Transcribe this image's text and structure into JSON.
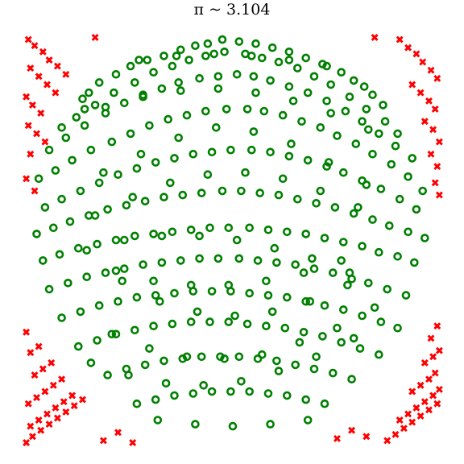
{
  "chart_data": {
    "type": "scatter",
    "title": "π ~  3.104",
    "xlabel": "",
    "ylabel": "",
    "xlim": [
      -1,
      1
    ],
    "ylim": [
      -1,
      1
    ],
    "axes_visible": false,
    "grid": false,
    "series": [
      {
        "key": "inside",
        "marker": "ring",
        "color": "#008000",
        "x": [
          -0.72,
          -0.69,
          -0.71,
          -0.64,
          -0.56,
          -0.49,
          -0.41,
          -0.33,
          -0.25,
          -0.18,
          -0.12,
          -0.05,
          0.03,
          0.11,
          0.19,
          0.27,
          0.35,
          0.43,
          0.52,
          0.58,
          0.63,
          0.67,
          0.72,
          -0.82,
          -0.75,
          -0.66,
          -0.57,
          -0.47,
          -0.38,
          -0.29,
          -0.21,
          -0.13,
          -0.04,
          0.06,
          0.14,
          0.22,
          0.31,
          0.39,
          0.47,
          0.56,
          0.64,
          0.73,
          0.79,
          -0.88,
          -0.8,
          -0.71,
          -0.61,
          -0.52,
          -0.43,
          -0.34,
          -0.26,
          -0.16,
          -0.07,
          0.02,
          0.1,
          0.18,
          0.27,
          0.36,
          0.45,
          0.54,
          0.62,
          0.7,
          0.78,
          0.86,
          -0.93,
          -0.85,
          -0.77,
          -0.68,
          -0.58,
          -0.49,
          -0.4,
          -0.31,
          -0.22,
          -0.13,
          -0.03,
          0.07,
          0.15,
          0.24,
          0.33,
          0.42,
          0.5,
          0.59,
          0.67,
          0.76,
          0.84,
          0.91,
          -0.9,
          -0.82,
          -0.73,
          -0.64,
          -0.55,
          -0.46,
          -0.37,
          -0.28,
          -0.19,
          -0.1,
          -0.01,
          0.09,
          0.18,
          0.27,
          0.36,
          0.45,
          0.53,
          0.62,
          0.71,
          0.8,
          0.88,
          -0.94,
          -0.86,
          -0.78,
          -0.69,
          -0.6,
          -0.51,
          -0.42,
          -0.33,
          -0.24,
          -0.15,
          -0.05,
          0.04,
          0.13,
          0.22,
          0.31,
          0.4,
          0.49,
          0.58,
          0.67,
          0.75,
          0.84,
          0.92,
          -0.91,
          -0.83,
          -0.74,
          -0.65,
          -0.56,
          -0.47,
          -0.38,
          -0.29,
          -0.2,
          -0.11,
          -0.02,
          0.08,
          0.17,
          0.26,
          0.35,
          0.44,
          0.53,
          0.62,
          0.7,
          0.79,
          0.87,
          -0.88,
          -0.79,
          -0.7,
          -0.61,
          -0.52,
          -0.43,
          -0.34,
          -0.25,
          -0.16,
          -0.07,
          0.03,
          0.12,
          0.21,
          0.3,
          0.39,
          0.48,
          0.57,
          0.65,
          0.74,
          0.83,
          -0.82,
          -0.73,
          -0.64,
          -0.55,
          -0.46,
          -0.37,
          -0.28,
          -0.19,
          -0.1,
          -0.01,
          0.08,
          0.17,
          0.26,
          0.35,
          0.44,
          0.53,
          0.62,
          0.71,
          0.79,
          -0.74,
          -0.65,
          -0.56,
          -0.47,
          -0.38,
          -0.29,
          -0.2,
          -0.11,
          -0.02,
          0.07,
          0.16,
          0.25,
          0.34,
          0.43,
          0.52,
          0.61,
          0.7,
          -0.6,
          -0.51,
          -0.42,
          -0.33,
          -0.24,
          -0.15,
          -0.06,
          0.03,
          0.12,
          0.21,
          0.3,
          0.39,
          0.48,
          0.57,
          -0.46,
          -0.37,
          -0.28,
          -0.19,
          -0.1,
          -0.01,
          0.08,
          0.17,
          0.26,
          0.35,
          0.44,
          -0.62,
          -0.44,
          -0.26,
          -0.08,
          0.1,
          0.28,
          0.46,
          0.64,
          -0.53,
          -0.35,
          -0.17,
          0.01,
          0.19,
          0.37,
          0.55,
          -0.66,
          -0.48,
          -0.3,
          -0.12,
          0.06,
          0.24,
          0.42,
          0.6,
          -0.58,
          -0.4,
          -0.22,
          -0.04,
          0.14,
          0.32,
          0.5,
          0.68,
          -0.7,
          -0.52,
          -0.34,
          -0.16,
          0.02,
          0.2,
          0.38,
          0.56,
          -0.61,
          -0.43,
          -0.25,
          -0.07,
          0.11,
          0.29,
          0.47,
          0.65,
          -0.68,
          -0.5,
          -0.32,
          -0.14,
          0.04,
          0.22,
          0.4,
          0.58,
          -0.56,
          -0.38,
          -0.2,
          -0.02,
          0.16,
          0.34,
          0.52,
          -0.45,
          -0.27,
          -0.09,
          0.09,
          0.27,
          0.45,
          -0.36,
          -0.18,
          0,
          0.18,
          0.36
        ],
        "y": [
          0.69,
          0.72,
          0.64,
          0.77,
          0.81,
          0.85,
          0.88,
          0.9,
          0.93,
          0.95,
          0.96,
          0.98,
          0.97,
          0.96,
          0.94,
          0.92,
          0.89,
          0.86,
          0.82,
          0.78,
          0.75,
          0.71,
          0.66,
          0.55,
          0.6,
          0.66,
          0.72,
          0.77,
          0.82,
          0.85,
          0.88,
          0.9,
          0.92,
          0.91,
          0.89,
          0.87,
          0.84,
          0.8,
          0.76,
          0.7,
          0.64,
          0.58,
          0.52,
          0.44,
          0.5,
          0.56,
          0.62,
          0.67,
          0.71,
          0.74,
          0.77,
          0.79,
          0.8,
          0.81,
          0.8,
          0.78,
          0.75,
          0.72,
          0.68,
          0.63,
          0.58,
          0.52,
          0.46,
          0.4,
          0.3,
          0.34,
          0.39,
          0.44,
          0.48,
          0.52,
          0.56,
          0.59,
          0.61,
          0.63,
          0.64,
          0.64,
          0.63,
          0.61,
          0.58,
          0.55,
          0.51,
          0.47,
          0.42,
          0.37,
          0.31,
          0.24,
          0.16,
          0.2,
          0.24,
          0.28,
          0.32,
          0.35,
          0.38,
          0.4,
          0.42,
          0.43,
          0.44,
          0.44,
          0.43,
          0.41,
          0.39,
          0.36,
          0.33,
          0.29,
          0.25,
          0.2,
          0.15,
          0.03,
          0.06,
          0.09,
          0.12,
          0.15,
          0.17,
          0.19,
          0.21,
          0.22,
          0.23,
          0.24,
          0.24,
          0.23,
          0.22,
          0.2,
          0.18,
          0.16,
          0.13,
          0.1,
          0.07,
          0.04,
          0.01,
          -0.1,
          -0.07,
          -0.04,
          -0.02,
          0,
          0.02,
          0.03,
          0.04,
          0.05,
          0.06,
          0.06,
          0.06,
          0.05,
          0.04,
          0.03,
          0.01,
          -0.01,
          -0.03,
          -0.06,
          -0.08,
          -0.11,
          -0.24,
          -0.21,
          -0.18,
          -0.16,
          -0.14,
          -0.12,
          -0.11,
          -0.1,
          -0.09,
          -0.09,
          -0.09,
          -0.1,
          -0.11,
          -0.12,
          -0.14,
          -0.16,
          -0.19,
          -0.21,
          -0.24,
          -0.27,
          -0.38,
          -0.35,
          -0.32,
          -0.3,
          -0.28,
          -0.27,
          -0.26,
          -0.25,
          -0.25,
          -0.25,
          -0.26,
          -0.27,
          -0.28,
          -0.3,
          -0.32,
          -0.34,
          -0.37,
          -0.4,
          -0.43,
          -0.52,
          -0.49,
          -0.46,
          -0.44,
          -0.42,
          -0.41,
          -0.4,
          -0.4,
          -0.4,
          -0.41,
          -0.42,
          -0.43,
          -0.45,
          -0.47,
          -0.5,
          -0.53,
          -0.56,
          -0.66,
          -0.63,
          -0.61,
          -0.59,
          -0.58,
          -0.57,
          -0.57,
          -0.57,
          -0.58,
          -0.59,
          -0.61,
          -0.63,
          -0.65,
          -0.68,
          -0.8,
          -0.78,
          -0.76,
          -0.75,
          -0.74,
          -0.74,
          -0.74,
          -0.75,
          -0.76,
          -0.78,
          -0.8,
          0.33,
          0.42,
          0.5,
          0.55,
          0.53,
          0.47,
          0.38,
          0.27,
          -0.2,
          -0.3,
          -0.35,
          -0.37,
          -0.35,
          -0.3,
          -0.22,
          0.12,
          0.21,
          0.28,
          0.32,
          0.33,
          0.3,
          0.24,
          0.16,
          -0.46,
          -0.53,
          -0.57,
          -0.58,
          -0.56,
          -0.5,
          -0.43,
          -0.33,
          -0.05,
          0.0,
          0.02,
          0.02,
          0.0,
          -0.04,
          -0.09,
          -0.16,
          0.65,
          0.7,
          0.73,
          0.74,
          0.72,
          0.68,
          0.62,
          0.54,
          -0.6,
          -0.66,
          -0.7,
          -0.71,
          -0.69,
          -0.64,
          -0.57,
          -0.48,
          -0.15,
          -0.2,
          -0.22,
          -0.22,
          -0.2,
          -0.16,
          -0.1,
          0.88,
          0.9,
          0.91,
          0.9,
          0.88,
          0.85,
          -0.88,
          -0.9,
          -0.91,
          -0.9,
          -0.88
        ]
      },
      {
        "key": "outside",
        "marker": "x",
        "color": "#ff0000",
        "x": [
          -0.98,
          -0.95,
          -0.91,
          -0.88,
          -0.84,
          -0.8,
          -0.97,
          -0.93,
          -0.89,
          -0.85,
          -0.99,
          -0.96,
          -0.92,
          -0.98,
          -0.94,
          -0.9,
          -0.97,
          -0.99,
          -0.95,
          0.8,
          0.84,
          0.88,
          0.91,
          0.95,
          0.98,
          0.86,
          0.9,
          0.94,
          0.97,
          0.92,
          0.96,
          0.99,
          0.95,
          0.98,
          0.97,
          0.99,
          -0.99,
          -0.96,
          -0.92,
          -0.88,
          -0.84,
          -0.8,
          -0.76,
          -0.72,
          -0.97,
          -0.93,
          -0.89,
          -0.85,
          -0.81,
          -0.77,
          -0.98,
          -0.94,
          -0.9,
          -0.86,
          -0.82,
          -0.95,
          -0.91,
          -0.87,
          -0.97,
          -0.93,
          -0.99,
          0.74,
          0.78,
          0.82,
          0.86,
          0.9,
          0.94,
          0.98,
          0.8,
          0.84,
          0.88,
          0.92,
          0.96,
          0.99,
          0.86,
          0.9,
          0.94,
          0.97,
          0.92,
          0.96,
          0.99,
          0.95,
          0.98,
          -0.62,
          -0.55,
          -0.48,
          0.5,
          0.57,
          0.64,
          -0.66,
          0.68
        ],
        "y": [
          0.98,
          0.95,
          0.92,
          0.88,
          0.85,
          0.81,
          0.84,
          0.8,
          0.76,
          0.72,
          0.7,
          0.66,
          0.62,
          0.56,
          0.52,
          0.48,
          0.42,
          0.3,
          0.24,
          0.98,
          0.94,
          0.91,
          0.87,
          0.83,
          0.79,
          0.76,
          0.72,
          0.68,
          0.64,
          0.58,
          0.54,
          0.48,
          0.42,
          0.36,
          0.28,
          0.22,
          -0.99,
          -0.96,
          -0.93,
          -0.9,
          -0.87,
          -0.84,
          -0.81,
          -0.78,
          -0.91,
          -0.88,
          -0.85,
          -0.82,
          -0.79,
          -0.76,
          -0.8,
          -0.77,
          -0.74,
          -0.71,
          -0.68,
          -0.66,
          -0.63,
          -0.6,
          -0.55,
          -0.52,
          -0.45,
          -0.98,
          -0.95,
          -0.92,
          -0.89,
          -0.86,
          -0.83,
          -0.8,
          -0.88,
          -0.85,
          -0.82,
          -0.79,
          -0.76,
          -0.73,
          -0.74,
          -0.71,
          -0.68,
          -0.65,
          -0.6,
          -0.57,
          -0.54,
          -0.48,
          -0.42,
          -0.98,
          -0.94,
          -0.99,
          -0.97,
          -0.93,
          -0.96,
          0.99,
          0.99
        ]
      }
    ]
  }
}
